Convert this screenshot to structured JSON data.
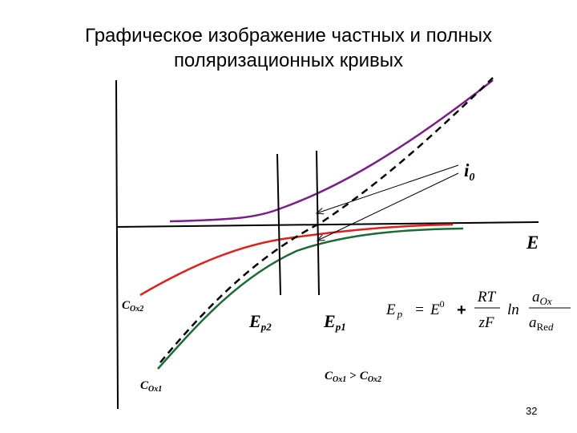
{
  "title": [
    "Графическое изображение частных и полных",
    "поляризационных кривых"
  ],
  "labels": {
    "current": {
      "text": "i",
      "sub": "0"
    },
    "potential_axis": "E",
    "ep2": {
      "text": "E",
      "sub": "p2"
    },
    "ep1": {
      "text": "E",
      "sub": "p1"
    },
    "cox2": {
      "text": "C",
      "sub": "Ox2"
    },
    "cox1": {
      "text": "C",
      "sub": "Ox1"
    },
    "comparison": {
      "left": "C",
      "left_sub": "Ox1",
      "op": ">",
      "right": "C",
      "right_sub": "Ox2"
    }
  },
  "formula": {
    "lhs": "E",
    "lhs_sub": "p",
    "eq": "=",
    "e0": "E",
    "e0_sup": "0",
    "plus": "+",
    "num": "RT",
    "den": "zF",
    "ln": "ln",
    "a_num": "a",
    "a_num_sub": "Ox",
    "a_den": "a",
    "a_den_sub": "Re",
    "a_den_sub2": "d"
  },
  "page_number": "32"
}
